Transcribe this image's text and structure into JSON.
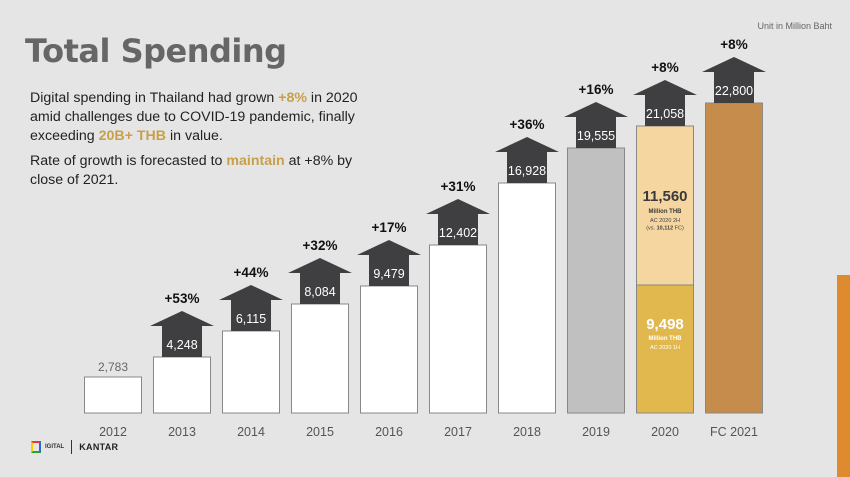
{
  "header": {
    "title": "Total Spending",
    "unit_note": "Unit in Million Baht"
  },
  "text": {
    "p1_a": "Digital spending in Thailand had grown ",
    "p1_hl1": "+8%",
    "p1_b": " in 2020 amid challenges due to COVID-19 pandemic, finally exceeding ",
    "p1_hl2": "20B+ THB",
    "p1_c": " in value.",
    "p2_a": "Rate of growth is forecasted to ",
    "p2_hl": "maintain",
    "p2_b": " at +8% by close of 2021."
  },
  "logos": {
    "left": "IGITAL",
    "right": "KANTAR"
  },
  "colors": {
    "bar_default": "#ffffff",
    "bar_2019": "#c0c0c0",
    "bar_2020_2h": "#f5d5a0",
    "bar_2020_1h": "#e1b84e",
    "bar_fc2021": "#c68c4c",
    "arrow": "#3f3f41",
    "highlight": "#c9a04a"
  },
  "chart_data": {
    "type": "bar",
    "title": "Total Spending",
    "ylabel": "Unit in Million Baht",
    "categories": [
      "2012",
      "2013",
      "2014",
      "2015",
      "2016",
      "2017",
      "2018",
      "2019",
      "2020",
      "FC 2021"
    ],
    "values": [
      2783,
      4248,
      6115,
      8084,
      9479,
      12402,
      16928,
      19555,
      21058,
      22800
    ],
    "value_labels": [
      "2,783",
      "4,248",
      "6,115",
      "8,084",
      "9,479",
      "12,402",
      "16,928",
      "19,555",
      "21,058",
      "22,800"
    ],
    "growth_labels": [
      "",
      "+53%",
      "+44%",
      "+32%",
      "+17%",
      "+31%",
      "+36%",
      "+16%",
      "+8%",
      "+8%"
    ],
    "ylim": [
      0,
      22800
    ],
    "split_2020": {
      "h1": {
        "value": 9498,
        "label": "9,498",
        "unit": "Million THB",
        "note": "AC 2020 1H"
      },
      "h2": {
        "value": 11560,
        "label": "11,560",
        "unit": "Million THB",
        "note": "AC 2020 2H",
        "note2_a": "(vs. ",
        "note2_b": "10,112",
        "note2_c": " FC)"
      }
    },
    "grid": false,
    "legend": "none"
  }
}
